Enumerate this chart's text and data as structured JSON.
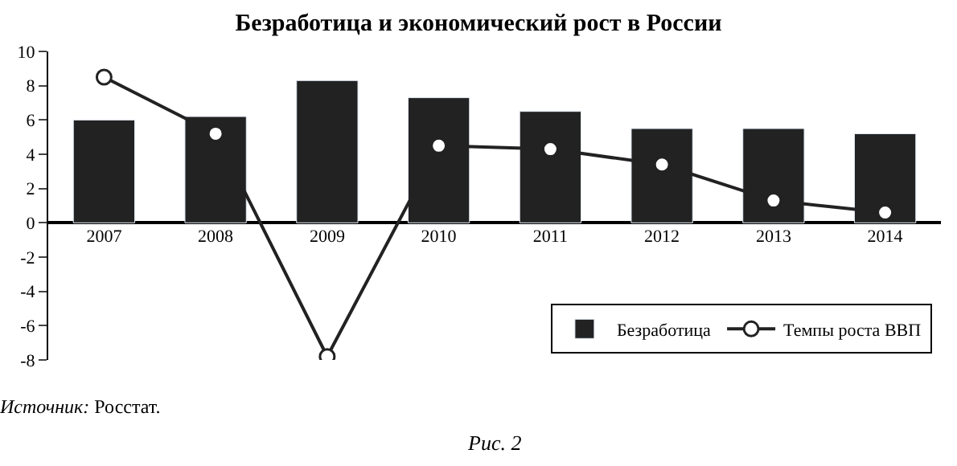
{
  "chart_data": {
    "type": "bar",
    "title": "Безработица и экономический рост в России",
    "categories": [
      "2007",
      "2008",
      "2009",
      "2010",
      "2011",
      "2012",
      "2013",
      "2014"
    ],
    "series": [
      {
        "name": "Безработица",
        "color": "#222222",
        "values": [
          6.0,
          6.2,
          8.3,
          7.3,
          6.5,
          5.5,
          5.5,
          5.2
        ]
      },
      {
        "name": "Темпы роста ВВП",
        "type": "line",
        "color": "#222222",
        "marker": "circle",
        "values": [
          8.5,
          5.2,
          -7.8,
          4.5,
          4.3,
          3.4,
          1.3,
          0.6
        ]
      }
    ],
    "ylim": [
      -8,
      10
    ],
    "yticks": [
      -8,
      -6,
      -4,
      -2,
      0,
      2,
      4,
      6,
      8,
      10
    ],
    "legend": "bottom right",
    "annotations": [
      "Источник: Росстат.",
      "Рис. 2"
    ]
  }
}
